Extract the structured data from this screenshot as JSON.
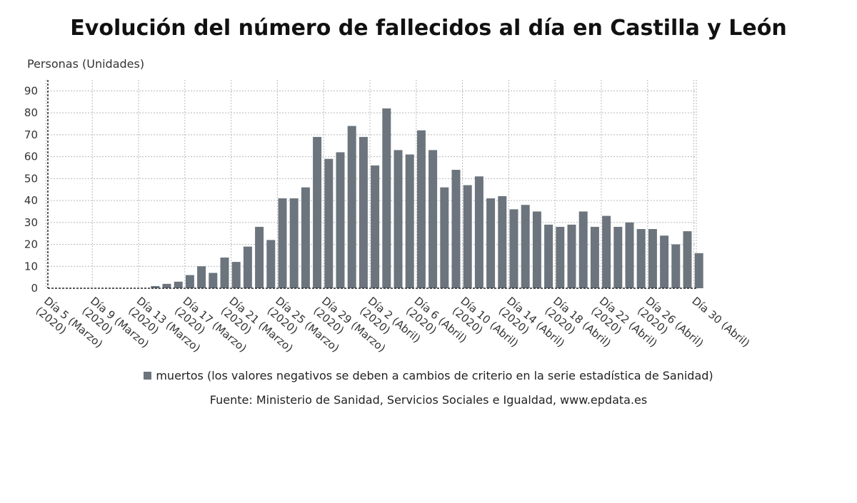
{
  "chart_data": {
    "type": "bar",
    "title": "Evolución del número de fallecidos al día en Castilla y León",
    "ylabel": "Personas (Unidades)",
    "xlabel": "",
    "ylim": [
      0,
      95
    ],
    "yticks": [
      0,
      10,
      20,
      30,
      40,
      50,
      60,
      70,
      80,
      90
    ],
    "grid": true,
    "legend_position": "bottom",
    "bar_color": "#6c757d",
    "categories": [
      "5 Marzo",
      "6 Marzo",
      "7 Marzo",
      "8 Marzo",
      "9 Marzo",
      "10 Marzo",
      "11 Marzo",
      "12 Marzo",
      "13 Marzo",
      "14 Marzo",
      "15 Marzo",
      "16 Marzo",
      "17 Marzo",
      "18 Marzo",
      "19 Marzo",
      "20 Marzo",
      "21 Marzo",
      "22 Marzo",
      "23 Marzo",
      "24 Marzo",
      "25 Marzo",
      "26 Marzo",
      "27 Marzo",
      "28 Marzo",
      "29 Marzo",
      "30 Marzo",
      "31 Marzo",
      "1 Abril",
      "2 Abril",
      "3 Abril",
      "4 Abril",
      "5 Abril",
      "6 Abril",
      "7 Abril",
      "8 Abril",
      "9 Abril",
      "10 Abril",
      "11 Abril",
      "12 Abril",
      "13 Abril",
      "14 Abril",
      "15 Abril",
      "16 Abril",
      "17 Abril",
      "18 Abril",
      "19 Abril",
      "20 Abril",
      "21 Abril",
      "22 Abril",
      "23 Abril",
      "24 Abril",
      "25 Abril",
      "26 Abril",
      "27 Abril",
      "28 Abril",
      "29 Abril",
      "30 Abril"
    ],
    "tick_labels": [
      {
        "index": 0,
        "line1": "Día 5 (Marzo)",
        "line2": "(2020)"
      },
      {
        "index": 4,
        "line1": "Día 9 (Marzo)",
        "line2": "(2020)"
      },
      {
        "index": 8,
        "line1": "Día 13 (Marzo)",
        "line2": "(2020)"
      },
      {
        "index": 12,
        "line1": "Día 17 (Marzo)",
        "line2": "(2020)"
      },
      {
        "index": 16,
        "line1": "Día 21 (Marzo)",
        "line2": "(2020)"
      },
      {
        "index": 20,
        "line1": "Día 25 (Marzo)",
        "line2": "(2020)"
      },
      {
        "index": 24,
        "line1": "Día 29 (Marzo)",
        "line2": "(2020)"
      },
      {
        "index": 28,
        "line1": "Día 2 (Abril)",
        "line2": "(2020)"
      },
      {
        "index": 32,
        "line1": "Día 6 (Abril)",
        "line2": "(2020)"
      },
      {
        "index": 36,
        "line1": "Día 10 (Abril)",
        "line2": "(2020)"
      },
      {
        "index": 40,
        "line1": "Día 14 (Abril)",
        "line2": "(2020)"
      },
      {
        "index": 44,
        "line1": "Día 18 (Abril)",
        "line2": "(2020)"
      },
      {
        "index": 48,
        "line1": "Día 22 (Abril)",
        "line2": "(2020)"
      },
      {
        "index": 52,
        "line1": "Día 26 (Abril)",
        "line2": "(2020)"
      },
      {
        "index": 56,
        "line1": "Día 30 (Abril)",
        "line2": ""
      }
    ],
    "series": [
      {
        "name": "muertos (los valores negativos se deben a cambios de criterio en la serie estadística de Sanidad)",
        "values": [
          0,
          0,
          0,
          0,
          0,
          0,
          0,
          0,
          0,
          1,
          2,
          3,
          6,
          10,
          7,
          14,
          12,
          19,
          28,
          22,
          41,
          41,
          46,
          69,
          59,
          62,
          74,
          69,
          56,
          82,
          63,
          61,
          72,
          63,
          46,
          54,
          47,
          51,
          41,
          42,
          36,
          38,
          35,
          29,
          28,
          29,
          35,
          28,
          33,
          28,
          30,
          27,
          27,
          24,
          20,
          26,
          16
        ]
      }
    ]
  },
  "source": "Fuente: Ministerio de Sanidad, Servicios Sociales e Igualdad, www.epdata.es"
}
